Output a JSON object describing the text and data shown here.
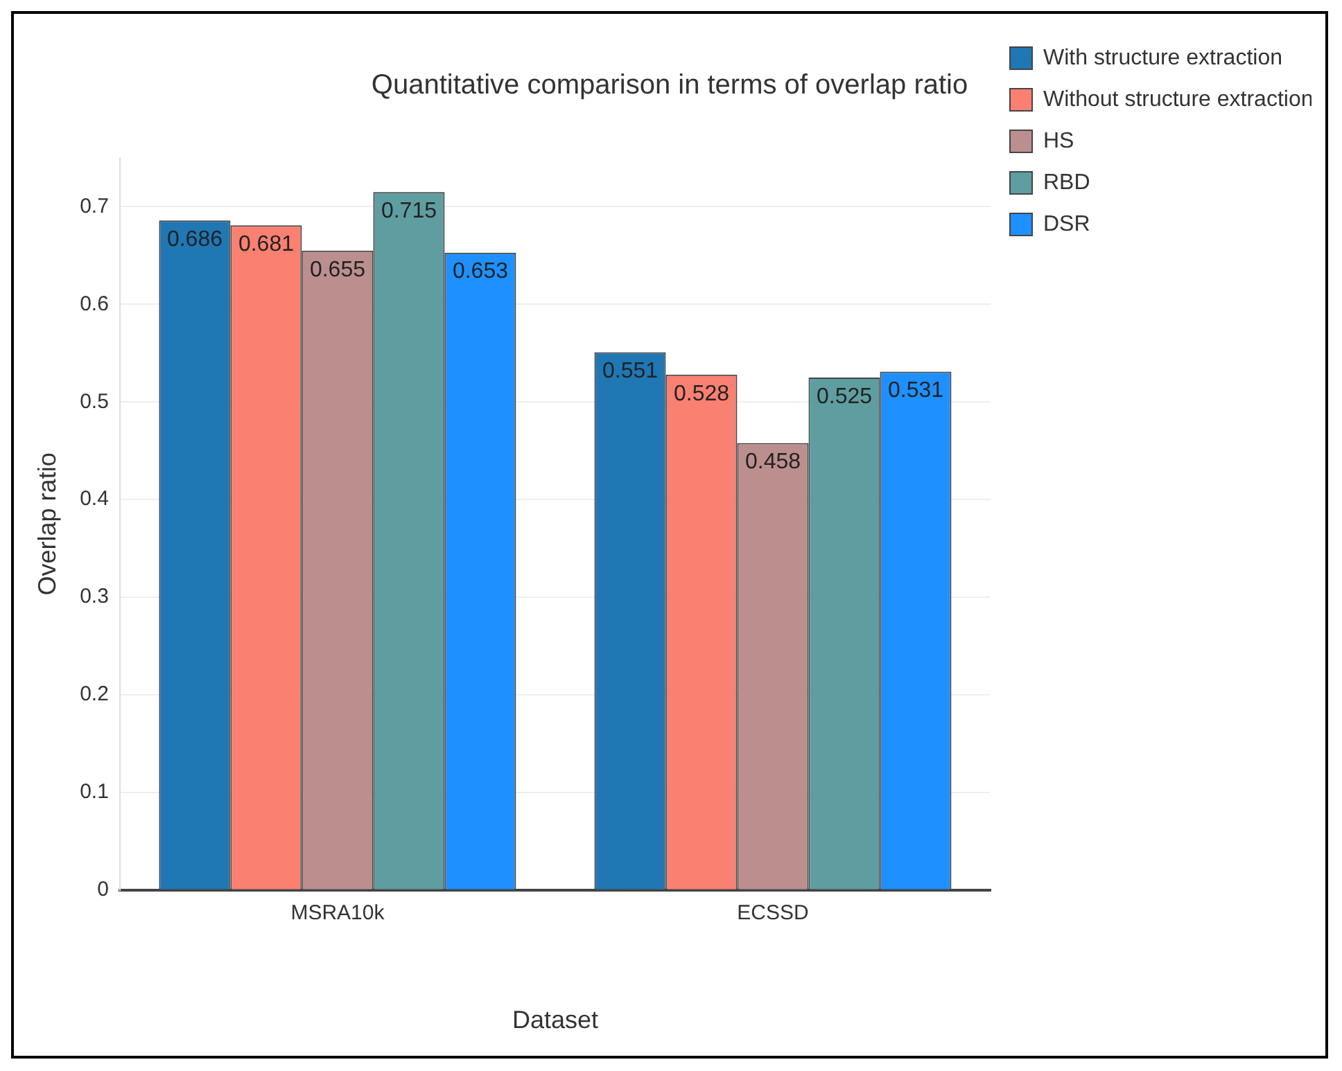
{
  "chart_data": {
    "type": "bar",
    "title": "Quantitative comparison in terms of overlap ratio",
    "xlabel": "Dataset",
    "ylabel": "Overlap ratio",
    "categories": [
      "MSRA10k",
      "ECSSD"
    ],
    "series": [
      {
        "name": "With structure extraction",
        "color": "#1f77b4",
        "values": [
          0.686,
          0.551
        ]
      },
      {
        "name": "Without structure extraction",
        "color": "#fa8072",
        "values": [
          0.681,
          0.528
        ]
      },
      {
        "name": "HS",
        "color": "#bc8f8f",
        "values": [
          0.655,
          0.458
        ]
      },
      {
        "name": "RBD",
        "color": "#5f9ea0",
        "values": [
          0.715,
          0.525
        ]
      },
      {
        "name": "DSR",
        "color": "#1e90ff",
        "values": [
          0.653,
          0.531
        ]
      }
    ],
    "ylim": [
      0,
      0.75
    ],
    "yticks": [
      0,
      0.1,
      0.2,
      0.3,
      0.4,
      0.5,
      0.6,
      0.7
    ],
    "grid": "y",
    "legend": "top right",
    "data_labels": true
  }
}
